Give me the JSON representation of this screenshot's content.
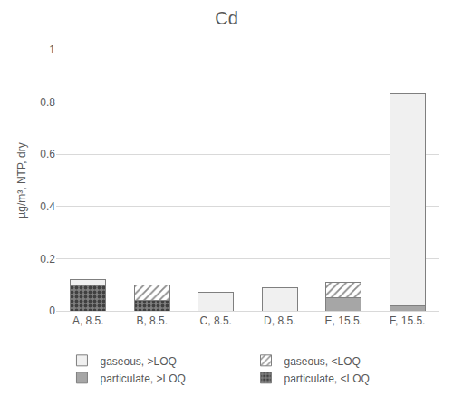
{
  "chart_data": {
    "type": "bar",
    "title": "Cd",
    "y_label": "µg/m³, NTP, dry",
    "categories": [
      "A, 8.5.",
      "B, 8.5.",
      "C, 8.5.",
      "D, 8.5.",
      "E, 15.5.",
      "F, 15.5."
    ],
    "series": [
      {
        "name": "particulate, <LOQ",
        "color": "#7f7f7f",
        "marker": "dots",
        "values": [
          0.1,
          0.04,
          0,
          0,
          0,
          0
        ]
      },
      {
        "name": "particulate, >LOQ",
        "color": "#a6a6a6",
        "marker": "solid",
        "values": [
          0,
          0,
          0,
          0,
          0.05,
          0.02
        ]
      },
      {
        "name": "gaseous, <LOQ",
        "color": "#8c8c8c",
        "marker": "hatch",
        "values": [
          0,
          0.06,
          0,
          0,
          0.06,
          0
        ]
      },
      {
        "name": "gaseous, >LOQ",
        "color": "#f0f0f0",
        "marker": "solid",
        "values": [
          0.02,
          0,
          0.07,
          0.09,
          0,
          0.81
        ]
      }
    ],
    "stacked": true,
    "ylim": [
      0,
      1
    ],
    "yticks": [
      0,
      0.2,
      0.4,
      0.6,
      0.8,
      1
    ],
    "grid": true,
    "legend": "bottom"
  }
}
